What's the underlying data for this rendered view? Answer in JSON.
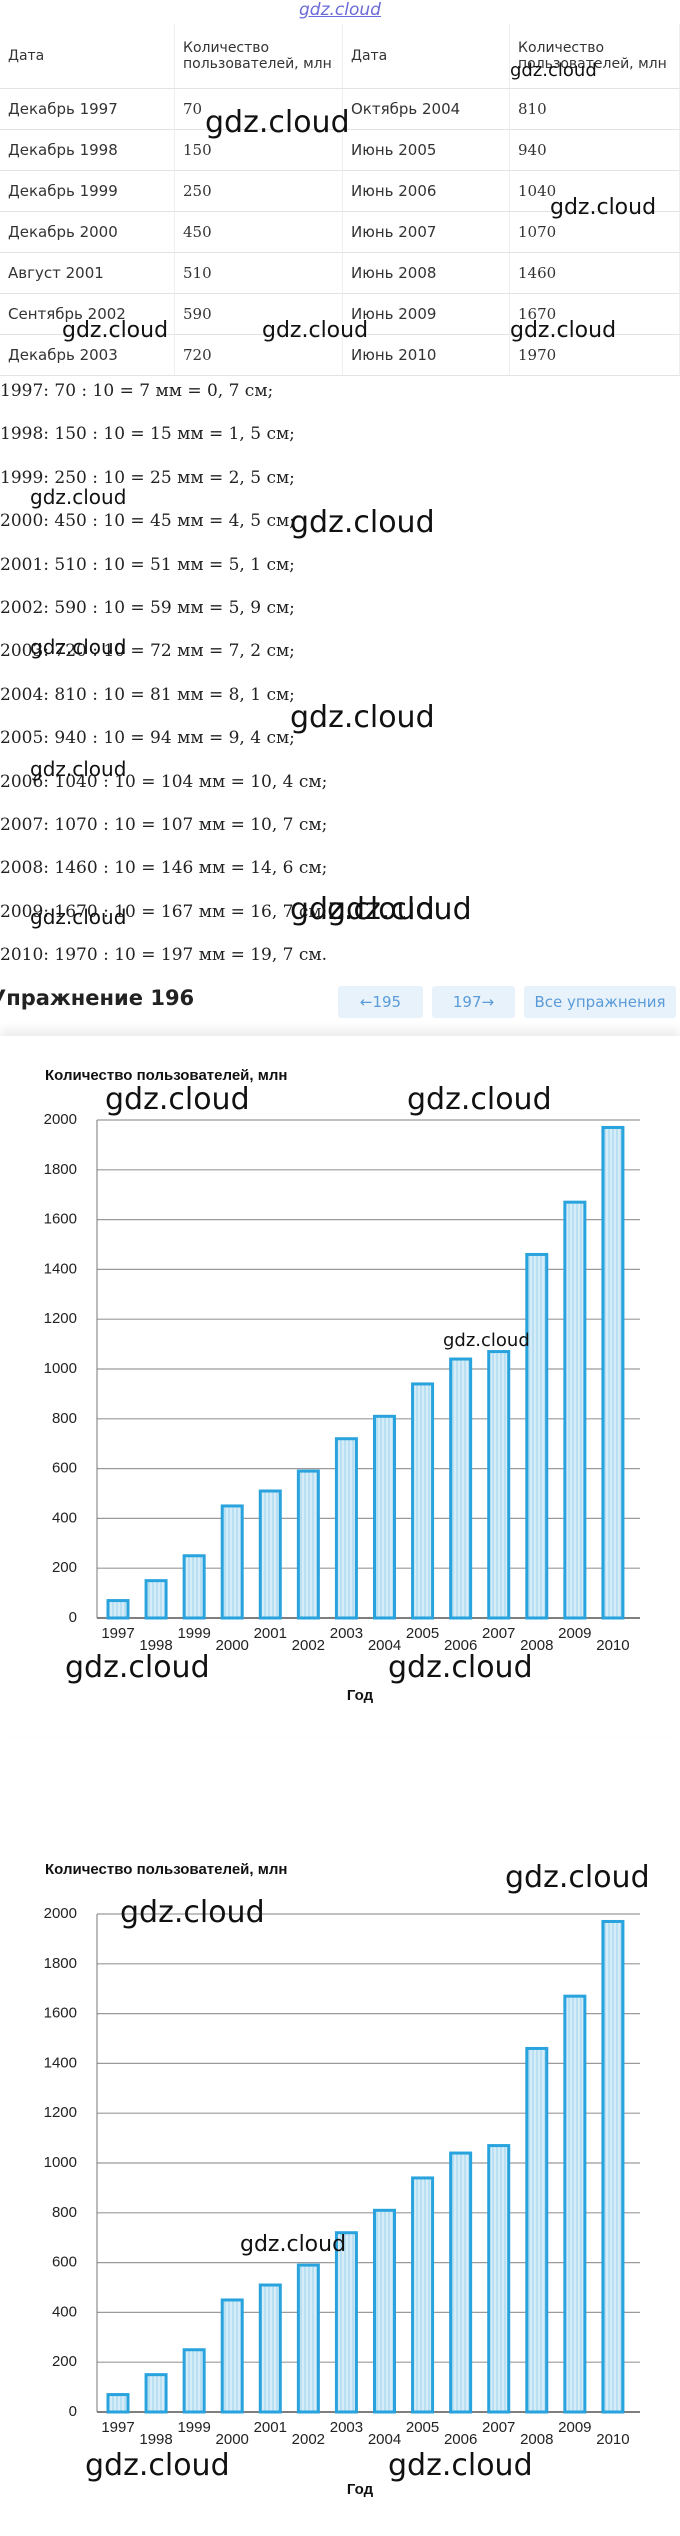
{
  "logo": "gdz.cloud",
  "watermark": "gdz.cloud",
  "table": {
    "header": [
      "Дата",
      "Количество пользователей, млн",
      "Дата",
      "Количество пользователей, млн"
    ],
    "rows": [
      [
        "Декабрь 1997",
        70,
        "Октябрь 2004",
        810
      ],
      [
        "Декабрь 1998",
        150,
        "Июнь 2005",
        940
      ],
      [
        "Декабрь 1999",
        250,
        "Июнь 2006",
        1040
      ],
      [
        "Декабрь 2000",
        450,
        "Июнь 2007",
        1070
      ],
      [
        "Август 2001",
        510,
        "Июнь 2008",
        1460
      ],
      [
        "Сентябрь 2002",
        590,
        "Июнь 2009",
        1670
      ],
      [
        "Декабрь 2003",
        720,
        "Июнь 2010",
        1970
      ]
    ]
  },
  "calculations": [
    "1997: 70 : 10 = 7 мм = 0, 7 см;",
    "1998: 150 : 10 = 15 мм = 1, 5 см;",
    "1999: 250 : 10 = 25 мм = 2, 5 см;",
    "2000: 450 : 10 = 45 мм = 4, 5 см;",
    "2001: 510 : 10 = 51 мм = 5, 1 см;",
    "2002: 590 : 10 = 59 мм = 5, 9 см;",
    "2003: 720 : 10 = 72 мм = 7, 2 см;",
    "2004: 810 : 10 = 81 мм = 8, 1 см;",
    "2005: 940 : 10 = 94 мм = 9, 4 см;",
    "2006: 1040 : 10 = 104 мм = 10, 4 см;",
    "2007: 1070 : 10 = 107 мм = 10, 7 см;",
    "2008: 1460 : 10 = 146 мм = 14, 6 см;",
    "2009: 1670 : 10 = 167 мм = 16, 7 см;",
    "2010: 1970 : 10 = 197 мм = 19, 7 см."
  ],
  "nav": {
    "title": "Упражнение 196",
    "prev": "195",
    "next": "197",
    "all": "Все упражнения"
  },
  "chart_data": [
    {
      "type": "bar",
      "title": "Количество пользователей, млн",
      "x_label": "Год",
      "categories": [
        "1997",
        "1998",
        "1999",
        "2000",
        "2001",
        "2002",
        "2003",
        "2004",
        "2005",
        "2006",
        "2007",
        "2008",
        "2009",
        "2010"
      ],
      "values": [
        70,
        150,
        250,
        450,
        510,
        590,
        720,
        810,
        940,
        1040,
        1070,
        1460,
        1670,
        1970
      ],
      "color": "#29a3dd",
      "fill": "#d6ecf7",
      "ylim": [
        0,
        2000
      ],
      "yticks": [
        0,
        200,
        400,
        600,
        800,
        1000,
        1200,
        1400,
        1600,
        1800,
        2000
      ],
      "grid": true
    },
    {
      "type": "bar",
      "title": "Количество пользователей, млн",
      "x_label": "Год",
      "categories": [
        "1997",
        "1998",
        "1999",
        "2000",
        "2001",
        "2002",
        "2003",
        "2004",
        "2005",
        "2006",
        "2007",
        "2008",
        "2009",
        "2010"
      ],
      "values": [
        70,
        150,
        250,
        450,
        510,
        590,
        720,
        810,
        940,
        1040,
        1070,
        1460,
        1670,
        1970
      ],
      "color": "#29a3dd",
      "fill": "#d6ecf7",
      "ylim": [
        0,
        2000
      ],
      "yticks": [
        0,
        200,
        400,
        600,
        800,
        1000,
        1200,
        1400,
        1600,
        1800,
        2000
      ],
      "grid": true
    }
  ]
}
